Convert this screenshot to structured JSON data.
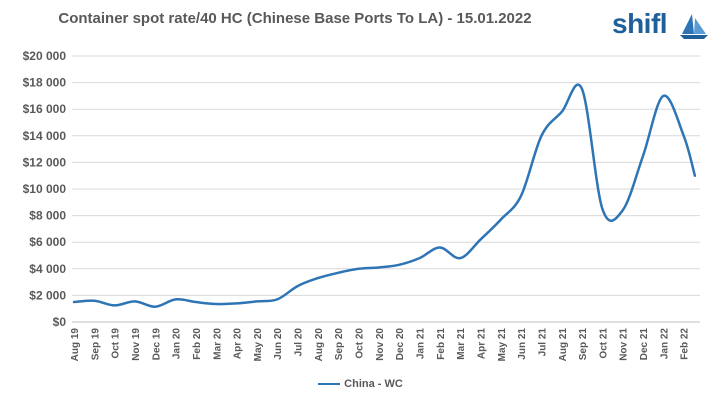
{
  "chart_data": {
    "type": "line",
    "title": "Container spot rate/40 HC (Chinese Base Ports To LA) - 15.01.2022",
    "xlabel": "",
    "ylabel": "",
    "ylim": [
      0,
      20000
    ],
    "y_ticks": [
      "$0",
      "$2 000",
      "$4 000",
      "$6 000",
      "$8 000",
      "$10 000",
      "$12 000",
      "$14 000",
      "$16 000",
      "$18 000",
      "$20 000"
    ],
    "grid": "horizontal",
    "legend_position": "bottom",
    "categories": [
      "Aug 19",
      "Sep 19",
      "Oct 19",
      "Nov 19",
      "Dec 19",
      "Jan 20",
      "Feb 20",
      "Mar 20",
      "Apr 20",
      "May 20",
      "Jun 20",
      "Jul 20",
      "Aug 20",
      "Sep 20",
      "Oct 20",
      "Nov 20",
      "Dec 20",
      "Jan 21",
      "Feb 21",
      "Mar 21",
      "Apr 21",
      "May 21",
      "Jun 21",
      "Jul 21",
      "Aug 21",
      "Sep 21",
      "Oct 21",
      "Nov 21",
      "Dec 21",
      "Jan 22",
      "Feb 22"
    ],
    "series": [
      {
        "name": "China - WC",
        "color": "#2e75b6",
        "values": [
          1500,
          1600,
          1250,
          1550,
          1150,
          1700,
          1500,
          1350,
          1400,
          1550,
          1700,
          2700,
          3300,
          3700,
          4000,
          4100,
          4300,
          4800,
          5600,
          4800,
          6200,
          7700,
          9500,
          14000,
          15800,
          17500,
          8500,
          8400,
          12500,
          17000,
          14000
        ]
      }
    ],
    "extra_points": [
      {
        "after_index": 30,
        "value": 11000
      }
    ]
  },
  "logo": {
    "text": "shifl",
    "icon": "sailboat-icon",
    "color": "#1f5f9a"
  }
}
